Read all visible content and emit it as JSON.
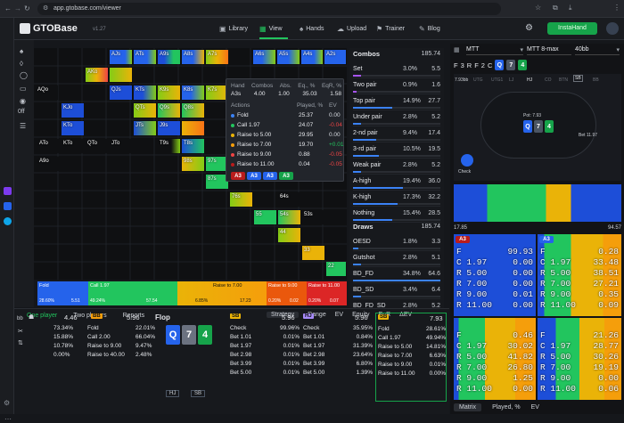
{
  "browser": {
    "url": "app.gtobase.com/viewer"
  },
  "app": {
    "logo": "GTOBase",
    "version": "v1.27",
    "nav": [
      "Library",
      "View",
      "Hands",
      "Upload",
      "Trainer",
      "Blog"
    ],
    "insta_btn": "InstaHand"
  },
  "matrix": {
    "hands_row1": [
      "AJs",
      "ATs",
      "A9s",
      "A8s",
      "A7s",
      "A6s",
      "A5s",
      "A4s",
      "A3s",
      "A2s"
    ],
    "labels": [
      {
        "t": "AKo"
      },
      {
        "t": "AQo"
      },
      {
        "t": "QJs"
      },
      {
        "t": "KTs"
      },
      {
        "t": "K9s"
      },
      {
        "t": "K8s"
      },
      {
        "t": "K7s"
      },
      {
        "t": "KJo"
      },
      {
        "t": "QTs"
      },
      {
        "t": "Q9s"
      },
      {
        "t": "Q8s"
      },
      {
        "t": "KTo"
      },
      {
        "t": "JTs"
      },
      {
        "t": "J9s"
      },
      {
        "t": "ATo"
      },
      {
        "t": "KTo"
      },
      {
        "t": "QTo"
      },
      {
        "t": "JTo"
      },
      {
        "t": "T9s"
      },
      {
        "t": "T8s"
      },
      {
        "t": "A9o"
      },
      {
        "t": "98s"
      },
      {
        "t": "97s"
      },
      {
        "t": "87s"
      },
      {
        "t": "76s"
      },
      {
        "t": "65s"
      },
      {
        "t": "64s"
      },
      {
        "t": "55"
      },
      {
        "t": "54s"
      },
      {
        "t": "53s"
      },
      {
        "t": "44"
      },
      {
        "t": "33"
      },
      {
        "t": "22"
      }
    ],
    "bottom_actions": [
      {
        "label": "Fold",
        "sub": "combos",
        "left": "28.60%",
        "right": "5.51"
      },
      {
        "label": "Call 1.97",
        "sub": "combos",
        "left": "49.24%",
        "right": "57.54"
      },
      {
        "label": "Raise to 7.00",
        "sub": "combos",
        "left": "6.85%",
        "right": "17.23"
      },
      {
        "label": "Raise to 9.00",
        "sub": "combos",
        "left": "0.20%",
        "right": "0.02"
      },
      {
        "label": "Raise to 11.00",
        "sub": "combos",
        "left": "0.20%",
        "right": "0.07"
      }
    ]
  },
  "popup": {
    "head": [
      "Hand",
      "Combos",
      "Abs.",
      "Eq., %",
      "EqR, %"
    ],
    "vals": [
      "A3s",
      "4.00",
      "1.00",
      "35.03",
      "1.58"
    ],
    "cols": [
      "Actions",
      "Played, %",
      "EV"
    ],
    "rows": [
      {
        "name": "Fold",
        "played": "25.37",
        "ev": "0.00",
        "dot": "#3b82f6",
        "evc": "#d7dae0"
      },
      {
        "name": "Call 1.97",
        "played": "24.07",
        "ev": "-0.04",
        "dot": "#22c55e",
        "evc": "#ef4444"
      },
      {
        "name": "Raise to 5.00",
        "played": "29.95",
        "ev": "0.00",
        "dot": "#eab308",
        "evc": "#d7dae0"
      },
      {
        "name": "Raise to 7.00",
        "played": "19.70",
        "ev": "+0.01",
        "dot": "#f59e0b",
        "evc": "#22c55e"
      },
      {
        "name": "Raise to 9.00",
        "played": "0.88",
        "ev": "-0.05",
        "dot": "#ef4444",
        "evc": "#ef4444"
      },
      {
        "name": "Raise to 11.00",
        "played": "0.04",
        "ev": "-0.05",
        "dot": "#b91c1c",
        "evc": "#ef4444"
      }
    ],
    "combos": [
      "A3",
      "A3",
      "A3",
      "A3"
    ]
  },
  "combos": {
    "title": "Combos",
    "total": "185.74",
    "rows": [
      {
        "name": "Set",
        "pct": "3.0%",
        "val": "5.5",
        "fill": 0.03,
        "col": "#a855f7"
      },
      {
        "name": "Two pair",
        "pct": "0.9%",
        "val": "1.6",
        "fill": 0.01,
        "col": "#a855f7"
      },
      {
        "name": "Top pair",
        "pct": "14.9%",
        "val": "27.7",
        "fill": 0.15,
        "col": "#3b82f6"
      },
      {
        "name": "Under pair",
        "pct": "2.8%",
        "val": "5.2",
        "fill": 0.03,
        "col": "#3b82f6"
      },
      {
        "name": "2-nd pair",
        "pct": "9.4%",
        "val": "17.4",
        "fill": 0.09,
        "col": "#3b82f6"
      },
      {
        "name": "3-rd pair",
        "pct": "10.5%",
        "val": "19.5",
        "fill": 0.1,
        "col": "#3b82f6"
      },
      {
        "name": "Weak pair",
        "pct": "2.8%",
        "val": "5.2",
        "fill": 0.03,
        "col": "#3b82f6"
      },
      {
        "name": "A-high",
        "pct": "19.4%",
        "val": "36.0",
        "fill": 0.19,
        "col": "#3b82f6"
      },
      {
        "name": "K-high",
        "pct": "17.3%",
        "val": "32.2",
        "fill": 0.17,
        "col": "#3b82f6"
      },
      {
        "name": "Nothing",
        "pct": "15.4%",
        "val": "28.5",
        "fill": 0.15,
        "col": "#3b82f6"
      }
    ],
    "draws_title": "Draws",
    "draws_total": "185.74",
    "draws": [
      {
        "name": "OESD",
        "pct": "1.8%",
        "val": "3.3",
        "fill": 0.02,
        "col": "#3b82f6"
      },
      {
        "name": "Gutshot",
        "pct": "2.8%",
        "val": "5.1",
        "fill": 0.03,
        "col": "#3b82f6"
      },
      {
        "name": "BD_FD",
        "pct": "34.8%",
        "val": "64.6",
        "fill": 0.35,
        "col": "#3b82f6"
      },
      {
        "name": "BD_SD",
        "pct": "3.4%",
        "val": "6.4",
        "fill": 0.03,
        "col": "#3b82f6"
      },
      {
        "name": "BD_FD_SD",
        "pct": "2.8%",
        "val": "5.2",
        "fill": 0.03,
        "col": "#3b82f6"
      }
    ]
  },
  "right": {
    "mode": "MTT",
    "format": "MTT 8-max",
    "stack": "40bb",
    "path": [
      "F",
      "3",
      "R",
      "F",
      "2",
      "C"
    ],
    "board": [
      "Q",
      "7",
      "4"
    ],
    "pot": "Pot: 7.93",
    "range_min": "17.85",
    "range_max": "94.57",
    "seats": [
      "7.93bb",
      "7.93bb",
      "UTG",
      "UTG1",
      "LJ",
      "HJ",
      "CO",
      "BTN",
      "SB",
      "BB"
    ],
    "check": "Check",
    "bet": "Bet 11.97"
  },
  "matrix2": {
    "h1": "A3",
    "h2": "A3",
    "left": [
      [
        "F",
        "99.93"
      ],
      [
        "C 1.97",
        "0.00"
      ],
      [
        "R 5.00",
        "0.00"
      ],
      [
        "R 7.00",
        "0.00"
      ],
      [
        "R 9.00",
        "0.01"
      ],
      [
        "R 11.00",
        "0.00"
      ]
    ],
    "right": [
      [
        "F",
        "0.28"
      ],
      [
        "C 1.97",
        "33.48"
      ],
      [
        "R 5.00",
        "38.51"
      ],
      [
        "R 7.00",
        "27.21"
      ],
      [
        "R 9.00",
        "0.35"
      ],
      [
        "R 11.00",
        "0.09"
      ]
    ],
    "left2": [
      [
        "F",
        "0.46"
      ],
      [
        "C 1.97",
        "30.02"
      ],
      [
        "R 5.00",
        "41.82"
      ],
      [
        "R 7.00",
        "26.80"
      ],
      [
        "R 9.00",
        "1.25"
      ],
      [
        "R 11.00",
        "0.00"
      ]
    ],
    "right2": [
      [
        "F",
        "21.26"
      ],
      [
        "C 1.97",
        "28.77"
      ],
      [
        "R 5.00",
        "30.26"
      ],
      [
        "R 7.00",
        "19.19"
      ],
      [
        "R 9.00",
        "0.00"
      ],
      [
        "R 11.00",
        "0.06"
      ]
    ],
    "tabs": [
      "Matrix",
      "Played, %",
      "EV"
    ]
  },
  "bottom": {
    "tabs": [
      "One player",
      "Two players",
      "Reports"
    ],
    "right_tabs": [
      "Strategy",
      "Range",
      "EV",
      "Equity",
      "EqR",
      "ΔEV"
    ],
    "p1": {
      "pos": "BB",
      "val": "4.46",
      "val2": "5.96",
      "rows": [
        [
          "73.34%",
          "Fold",
          "22.01%"
        ],
        [
          "15.88%",
          "Call 2.00",
          "66.04%"
        ],
        [
          "10.78%",
          "Raise to 9.00",
          "9.47%"
        ],
        [
          "0.00%",
          "Raise to 40.00",
          "2.48%"
        ]
      ]
    },
    "flop": "Flop",
    "flop_cards": [
      "Q",
      "7",
      "4"
    ],
    "pos_tags": [
      "HJ",
      "SB"
    ],
    "p2": {
      "pos": "SB",
      "val": "5.96",
      "rows": [
        [
          "Check",
          "99.96%"
        ],
        [
          "Bet 1.01",
          "0.01%"
        ],
        [
          "Bet 1.97",
          "0.01%"
        ],
        [
          "Bet 2.98",
          "0.01%"
        ],
        [
          "Bet 3.99",
          "0.01%"
        ],
        [
          "Bet 5.00",
          "0.01%"
        ]
      ]
    },
    "p3": {
      "pos": "HJ",
      "val": "5.96",
      "rows": [
        [
          "Check",
          "35.95%"
        ],
        [
          "Bet 1.01",
          "0.84%"
        ],
        [
          "Bet 1.97",
          "31.39%"
        ],
        [
          "Bet 2.98",
          "23.64%"
        ],
        [
          "Bet 3.99",
          "6.80%"
        ],
        [
          "Bet 5.00",
          "1.39%"
        ]
      ]
    },
    "p4": {
      "pos": "SB",
      "val": "7.93",
      "rows": [
        [
          "Fold",
          "28.61%"
        ],
        [
          "Call 1.97",
          "49.94%"
        ],
        [
          "Raise to 5.00",
          "14.81%"
        ],
        [
          "Raise to 7.00",
          "6.63%"
        ],
        [
          "Raise to 9.00",
          "0.01%"
        ],
        [
          "Raise to 11.00",
          "0.00%"
        ]
      ]
    }
  }
}
